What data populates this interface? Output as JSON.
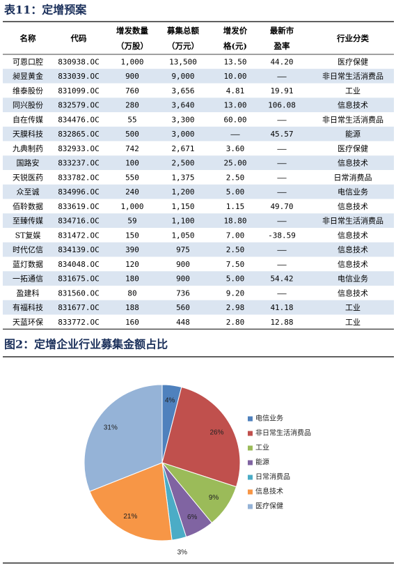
{
  "table_title": "表11：定增预案",
  "table": {
    "headers": [
      [
        "名称"
      ],
      [
        "代码"
      ],
      [
        "增发数量",
        "（万股）"
      ],
      [
        "募集总额",
        "（万元）"
      ],
      [
        "增发价",
        "格(元)"
      ],
      [
        "最新市",
        "盈率"
      ],
      [
        "行业分类"
      ]
    ],
    "rows": [
      [
        "可恩口腔",
        "830938.OC",
        "1,000",
        "13,500",
        "13.50",
        "44.20",
        "医疗保健"
      ],
      [
        "昶昱黄金",
        "833039.OC",
        "900",
        "9,000",
        "10.00",
        "——",
        "非日常生活消费品"
      ],
      [
        "维泰股份",
        "831099.OC",
        "760",
        "3,656",
        "4.81",
        "19.91",
        "工业"
      ],
      [
        "同兴股份",
        "832579.OC",
        "280",
        "3,640",
        "13.00",
        "106.08",
        "信息技术"
      ],
      [
        "自在传媒",
        "834476.OC",
        "55",
        "3,300",
        "60.00",
        "——",
        "非日常生活消费品"
      ],
      [
        "天膜科技",
        "832865.OC",
        "500",
        "3,000",
        "——",
        "45.57",
        "能源"
      ],
      [
        "九典制药",
        "832933.OC",
        "742",
        "2,671",
        "3.60",
        "——",
        "医疗保健"
      ],
      [
        "国路安",
        "833237.OC",
        "100",
        "2,500",
        "25.00",
        "——",
        "信息技术"
      ],
      [
        "天锐医药",
        "833782.OC",
        "550",
        "1,375",
        "2.50",
        "——",
        "日常消费品"
      ],
      [
        "众至诚",
        "834996.OC",
        "240",
        "1,200",
        "5.00",
        "——",
        "电信业务"
      ],
      [
        "佰聆数据",
        "833619.OC",
        "1,000",
        "1,150",
        "1.15",
        "49.70",
        "信息技术"
      ],
      [
        "至臻传媒",
        "834716.OC",
        "59",
        "1,100",
        "18.80",
        "——",
        "非日常生活消费品"
      ],
      [
        "ST复娱",
        "831472.OC",
        "150",
        "1,050",
        "7.00",
        "-38.59",
        "信息技术"
      ],
      [
        "时代亿信",
        "834139.OC",
        "390",
        "975",
        "2.50",
        "——",
        "信息技术"
      ],
      [
        "蓝灯数据",
        "834048.OC",
        "120",
        "900",
        "7.50",
        "——",
        "信息技术"
      ],
      [
        "一拓通信",
        "831675.OC",
        "180",
        "900",
        "5.00",
        "54.42",
        "电信业务"
      ],
      [
        "盈建科",
        "831560.OC",
        "80",
        "736",
        "9.20",
        "——",
        "信息技术"
      ],
      [
        "有福科技",
        "831677.OC",
        "188",
        "560",
        "2.98",
        "41.18",
        "工业"
      ],
      [
        "天蓝环保",
        "833772.OC",
        "160",
        "448",
        "2.80",
        "12.88",
        "工业"
      ]
    ]
  },
  "chart_data": {
    "type": "pie",
    "title": "图2：定增企业行业募集金额占比",
    "categories": [
      "电信业务",
      "非日常生活消费品",
      "工业",
      "能源",
      "日常消费品",
      "信息技术",
      "医疗保健"
    ],
    "values": [
      4,
      26,
      9,
      6,
      3,
      21,
      31
    ],
    "value_labels": [
      "4%",
      "26%",
      "9%",
      "6%",
      "3%",
      "21%",
      "31%"
    ],
    "colors": [
      "#4f81bd",
      "#c0504d",
      "#9bbb59",
      "#8064a2",
      "#4bacc6",
      "#f79646",
      "#95b3d7"
    ],
    "legend": "right"
  }
}
